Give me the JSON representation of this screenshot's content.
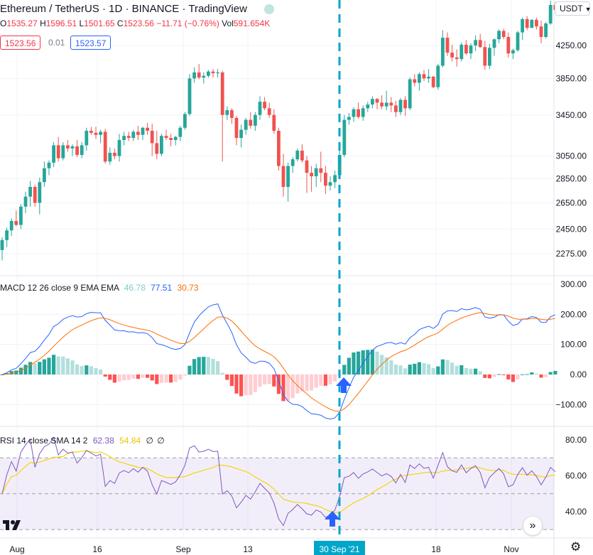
{
  "header": {
    "title": "Ethereum / TetherUS · 1D · BINANCE · TradingView",
    "ohlc": [
      {
        "k": "O",
        "v": "1535.27"
      },
      {
        "k": "H",
        "v": "1596.51"
      },
      {
        "k": "L",
        "v": "1501.65"
      },
      {
        "k": "C",
        "v": "1523.56"
      },
      {
        "k": "",
        "v": "−11.71 (−0.76%)"
      },
      {
        "k": "Vol",
        "v": "591.654K"
      }
    ],
    "bid": "1523.56",
    "spread": "0.01",
    "ask": "1523.57",
    "currency": "USDT"
  },
  "colors": {
    "up": "#26a69a",
    "down": "#ef5350",
    "macd": "#2962ff",
    "signal": "#ff6d00",
    "rsi": "#7e57c2",
    "rsi_ma": "#f5d40f",
    "marker": "#00a6c9",
    "arrow": "#2962ff"
  },
  "icons": {
    "arrow": "arrow-up-icon",
    "logo": "tradingview-logo-icon",
    "scroll": "scroll-right-icon",
    "settings": "gear-icon"
  },
  "chart_data": [
    {
      "type": "candlestick",
      "price_axis": [
        "4250.00",
        "3850.00",
        "3450.00",
        "3050.00",
        "2850.00",
        "2650.00",
        "2450.00",
        "2275.00"
      ],
      "time_axis": [
        "Aug",
        "16",
        "Sep",
        "13",
        "30 Sep '21",
        "18",
        "Nov"
      ],
      "highlighted_date": "30 Sep '21",
      "log_scale": true,
      "candles_ohlc": [
        [
          2300,
          2390,
          2230,
          2370
        ],
        [
          2370,
          2460,
          2320,
          2440
        ],
        [
          2440,
          2530,
          2400,
          2510
        ],
        [
          2510,
          2590,
          2470,
          2480
        ],
        [
          2480,
          2640,
          2450,
          2620
        ],
        [
          2620,
          2740,
          2570,
          2700
        ],
        [
          2700,
          2830,
          2620,
          2780
        ],
        [
          2780,
          2800,
          2620,
          2650
        ],
        [
          2650,
          2860,
          2560,
          2820
        ],
        [
          2820,
          3000,
          2780,
          2940
        ],
        [
          2940,
          3010,
          2880,
          2990
        ],
        [
          2990,
          3180,
          2950,
          3150
        ],
        [
          3150,
          3230,
          3000,
          3030
        ],
        [
          3030,
          3180,
          3010,
          3150
        ],
        [
          3150,
          3200,
          3090,
          3120
        ],
        [
          3120,
          3160,
          3050,
          3140
        ],
        [
          3140,
          3200,
          3040,
          3060
        ],
        [
          3060,
          3180,
          3030,
          3150
        ],
        [
          3150,
          3320,
          3100,
          3290
        ],
        [
          3290,
          3330,
          3250,
          3270
        ],
        [
          3270,
          3330,
          3210,
          3250
        ],
        [
          3250,
          3300,
          3170,
          3280
        ],
        [
          3280,
          3310,
          2980,
          3000
        ],
        [
          3000,
          3130,
          2970,
          3080
        ],
        [
          3080,
          3120,
          3020,
          3050
        ],
        [
          3050,
          3260,
          3000,
          3200
        ],
        [
          3200,
          3280,
          3150,
          3240
        ],
        [
          3240,
          3280,
          3190,
          3220
        ],
        [
          3220,
          3300,
          3190,
          3280
        ],
        [
          3280,
          3340,
          3200,
          3250
        ],
        [
          3250,
          3330,
          3200,
          3320
        ],
        [
          3320,
          3370,
          3250,
          3290
        ],
        [
          3290,
          3360,
          3050,
          3170
        ],
        [
          3170,
          3290,
          3020,
          3070
        ],
        [
          3070,
          3260,
          3050,
          3240
        ],
        [
          3240,
          3300,
          3200,
          3220
        ],
        [
          3220,
          3260,
          3140,
          3200
        ],
        [
          3200,
          3240,
          3150,
          3230
        ],
        [
          3230,
          3340,
          3190,
          3320
        ],
        [
          3320,
          3480,
          3300,
          3460
        ],
        [
          3460,
          3900,
          3440,
          3850
        ],
        [
          3850,
          3980,
          3800,
          3920
        ],
        [
          3920,
          4020,
          3840,
          3860
        ],
        [
          3860,
          3920,
          3790,
          3880
        ],
        [
          3880,
          3950,
          3860,
          3930
        ],
        [
          3930,
          3960,
          3860,
          3910
        ],
        [
          3910,
          3960,
          3860,
          3920
        ],
        [
          3920,
          3940,
          3000,
          3450
        ],
        [
          3450,
          3540,
          3400,
          3500
        ],
        [
          3500,
          3520,
          3360,
          3420
        ],
        [
          3420,
          3440,
          3150,
          3220
        ],
        [
          3220,
          3350,
          3130,
          3300
        ],
        [
          3300,
          3420,
          3250,
          3400
        ],
        [
          3400,
          3480,
          3310,
          3340
        ],
        [
          3340,
          3480,
          3290,
          3450
        ],
        [
          3450,
          3650,
          3400,
          3590
        ],
        [
          3590,
          3640,
          3500,
          3520
        ],
        [
          3520,
          3580,
          3420,
          3450
        ],
        [
          3450,
          3510,
          3260,
          3290
        ],
        [
          3290,
          3320,
          2920,
          2960
        ],
        [
          2960,
          3070,
          2700,
          2780
        ],
        [
          2780,
          2990,
          2660,
          2960
        ],
        [
          2960,
          3040,
          2900,
          3020
        ],
        [
          3020,
          3120,
          3000,
          3100
        ],
        [
          3100,
          3160,
          2990,
          3010
        ],
        [
          3010,
          3050,
          2730,
          2900
        ],
        [
          2900,
          2960,
          2740,
          2870
        ],
        [
          2870,
          2980,
          2780,
          2940
        ],
        [
          2940,
          3090,
          2820,
          2900
        ],
        [
          2900,
          2960,
          2720,
          2790
        ],
        [
          2790,
          2870,
          2750,
          2820
        ],
        [
          2820,
          2920,
          2770,
          2880
        ],
        [
          2880,
          3100,
          2850,
          3060
        ],
        [
          3060,
          3450,
          3040,
          3400
        ],
        [
          3400,
          3470,
          3350,
          3430
        ],
        [
          3430,
          3530,
          3380,
          3510
        ],
        [
          3510,
          3580,
          3410,
          3430
        ],
        [
          3430,
          3550,
          3390,
          3520
        ],
        [
          3520,
          3590,
          3480,
          3560
        ],
        [
          3560,
          3650,
          3520,
          3620
        ],
        [
          3620,
          3630,
          3510,
          3580
        ],
        [
          3580,
          3660,
          3510,
          3540
        ],
        [
          3540,
          3710,
          3500,
          3580
        ],
        [
          3580,
          3640,
          3480,
          3550
        ],
        [
          3550,
          3600,
          3430,
          3480
        ],
        [
          3480,
          3630,
          3450,
          3610
        ],
        [
          3610,
          3650,
          3440,
          3520
        ],
        [
          3520,
          3860,
          3500,
          3840
        ],
        [
          3840,
          3900,
          3760,
          3800
        ],
        [
          3800,
          3920,
          3710,
          3900
        ],
        [
          3900,
          3950,
          3820,
          3850
        ],
        [
          3850,
          3960,
          3800,
          3870
        ],
        [
          3870,
          3880,
          3740,
          3750
        ],
        [
          3750,
          4020,
          3720,
          4000
        ],
        [
          4000,
          4450,
          3980,
          4350
        ],
        [
          4350,
          4420,
          4120,
          4160
        ],
        [
          4160,
          4260,
          4050,
          4100
        ],
        [
          4100,
          4200,
          3990,
          4080
        ],
        [
          4080,
          4290,
          4050,
          4260
        ],
        [
          4260,
          4320,
          4130,
          4150
        ],
        [
          4150,
          4280,
          4080,
          4250
        ],
        [
          4250,
          4380,
          4180,
          4320
        ],
        [
          4320,
          4400,
          4220,
          4230
        ],
        [
          4230,
          4310,
          3950,
          4000
        ],
        [
          4000,
          4270,
          3960,
          4220
        ],
        [
          4220,
          4340,
          4120,
          4330
        ],
        [
          4330,
          4460,
          4280,
          4440
        ],
        [
          4440,
          4470,
          4330,
          4360
        ],
        [
          4360,
          4420,
          4100,
          4150
        ],
        [
          4150,
          4210,
          4080,
          4190
        ],
        [
          4190,
          4440,
          4170,
          4420
        ],
        [
          4420,
          4620,
          4320,
          4600
        ],
        [
          4600,
          4640,
          4450,
          4480
        ],
        [
          4480,
          4600,
          4480,
          4590
        ],
        [
          4590,
          4620,
          4460,
          4500
        ],
        [
          4500,
          4580,
          4280,
          4360
        ],
        [
          4360,
          4560,
          4340,
          4540
        ],
        [
          4540,
          4860,
          4520,
          4800
        ],
        [
          4800,
          4840,
          4700,
          4730
        ]
      ]
    },
    {
      "type": "bar+line",
      "label": "MACD 12 26 close 9 EMA EMA",
      "values_shown": [
        "46.78",
        "77.51",
        "30.73"
      ],
      "y_axis": [
        "300.00",
        "200.00",
        "100.00",
        "0.00",
        "−100.00"
      ],
      "ylim": [
        -135,
        320
      ]
    },
    {
      "type": "line",
      "label": "RSI 14 close SMA 14 2",
      "values_shown": [
        "62.38",
        "54.84",
        "∅",
        "∅"
      ],
      "y_axis": [
        "80.00",
        "60.00",
        "40.00"
      ],
      "band": [
        30,
        70
      ],
      "middle": 50,
      "ylim": [
        27,
        85
      ]
    }
  ]
}
